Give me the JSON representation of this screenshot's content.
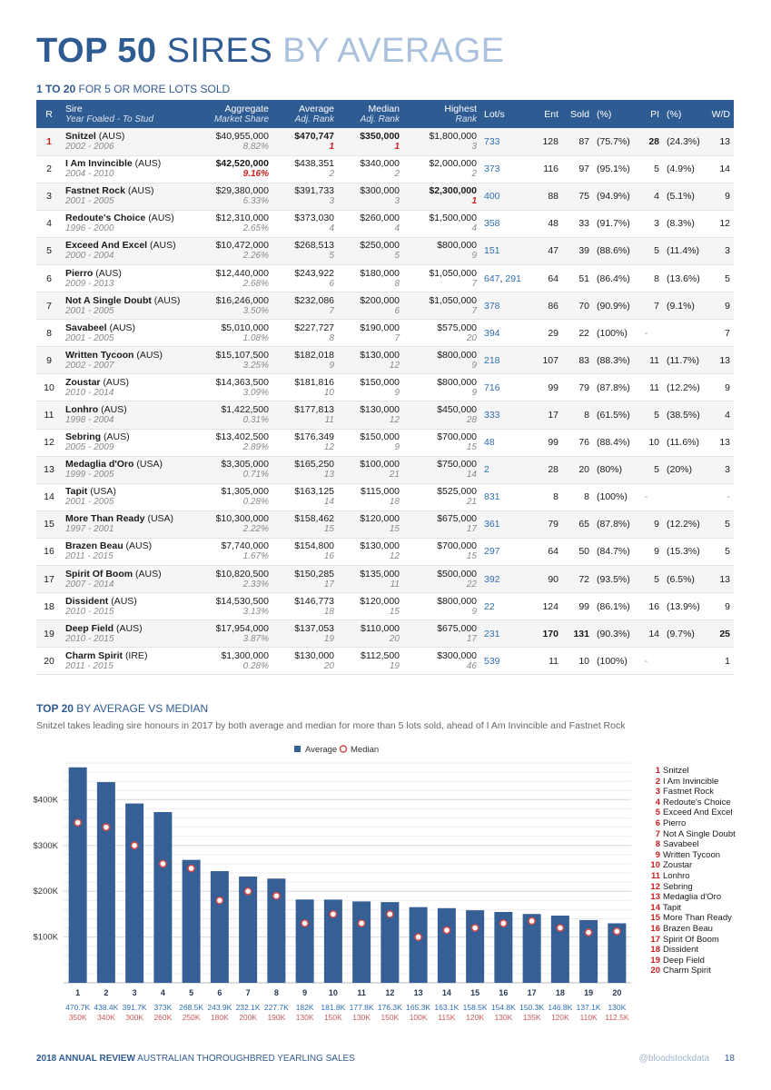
{
  "title": {
    "bold": "TOP 50",
    "mid": "SIRES",
    "light": "BY AVERAGE"
  },
  "subtitle": {
    "bold": "1 TO 20",
    "rest": "FOR 5 OR MORE LOTS SOLD"
  },
  "table": {
    "headers": {
      "r": "R",
      "sire": "Sire",
      "sire_sub": "Year Foaled - To Stud",
      "agg": "Aggregate",
      "agg_sub": "Market Share",
      "avg": "Average",
      "avg_sub": "Adj. Rank",
      "med": "Median",
      "med_sub": "Adj. Rank",
      "high": "Highest",
      "high_sub": "Rank",
      "lots": "Lot/s",
      "ent": "Ent",
      "sold": "Sold",
      "pct": "(%)",
      "pi": "PI",
      "pipct": "(%)",
      "wd": "W/D"
    },
    "rows": [
      {
        "r": "1",
        "name": "Snitzel",
        "country": "(AUS)",
        "years": "2002 - 2006",
        "agg": "$40,955,000",
        "share": "8.82%",
        "avg": "$470,747",
        "avg_rank": "1",
        "med": "$350,000",
        "med_rank": "1",
        "high": "$1,800,000",
        "high_rank": "3",
        "lots": [
          "733"
        ],
        "ent": "128",
        "sold": "87",
        "pct": "(75.7%)",
        "pi": "28",
        "pipct": "(24.3%)",
        "wd": "13"
      },
      {
        "r": "2",
        "name": "I Am Invincible",
        "country": "(AUS)",
        "years": "2004 - 2010",
        "agg": "$42,520,000",
        "share": "9.16%",
        "avg": "$438,351",
        "avg_rank": "2",
        "med": "$340,000",
        "med_rank": "2",
        "high": "$2,000,000",
        "high_rank": "2",
        "lots": [
          "373"
        ],
        "ent": "116",
        "sold": "97",
        "pct": "(95.1%)",
        "pi": "5",
        "pipct": "(4.9%)",
        "wd": "14"
      },
      {
        "r": "3",
        "name": "Fastnet Rock",
        "country": "(AUS)",
        "years": "2001 - 2005",
        "agg": "$29,380,000",
        "share": "6.33%",
        "avg": "$391,733",
        "avg_rank": "3",
        "med": "$300,000",
        "med_rank": "3",
        "high": "$2,300,000",
        "high_rank": "1",
        "lots": [
          "400"
        ],
        "ent": "88",
        "sold": "75",
        "pct": "(94.9%)",
        "pi": "4",
        "pipct": "(5.1%)",
        "wd": "9"
      },
      {
        "r": "4",
        "name": "Redoute's Choice",
        "country": "(AUS)",
        "years": "1996 - 2000",
        "agg": "$12,310,000",
        "share": "2.65%",
        "avg": "$373,030",
        "avg_rank": "4",
        "med": "$260,000",
        "med_rank": "4",
        "high": "$1,500,000",
        "high_rank": "4",
        "lots": [
          "358"
        ],
        "ent": "48",
        "sold": "33",
        "pct": "(91.7%)",
        "pi": "3",
        "pipct": "(8.3%)",
        "wd": "12"
      },
      {
        "r": "5",
        "name": "Exceed And Excel",
        "country": "(AUS)",
        "years": "2000 - 2004",
        "agg": "$10,472,000",
        "share": "2.26%",
        "avg": "$268,513",
        "avg_rank": "5",
        "med": "$250,000",
        "med_rank": "5",
        "high": "$800,000",
        "high_rank": "9",
        "lots": [
          "151"
        ],
        "ent": "47",
        "sold": "39",
        "pct": "(88.6%)",
        "pi": "5",
        "pipct": "(11.4%)",
        "wd": "3"
      },
      {
        "r": "6",
        "name": "Pierro",
        "country": "(AUS)",
        "years": "2009 - 2013",
        "agg": "$12,440,000",
        "share": "2.68%",
        "avg": "$243,922",
        "avg_rank": "6",
        "med": "$180,000",
        "med_rank": "8",
        "high": "$1,050,000",
        "high_rank": "7",
        "lots": [
          "647",
          "291"
        ],
        "ent": "64",
        "sold": "51",
        "pct": "(86.4%)",
        "pi": "8",
        "pipct": "(13.6%)",
        "wd": "5"
      },
      {
        "r": "7",
        "name": "Not A Single Doubt",
        "country": "(AUS)",
        "years": "2001 - 2005",
        "agg": "$16,246,000",
        "share": "3.50%",
        "avg": "$232,086",
        "avg_rank": "7",
        "med": "$200,000",
        "med_rank": "6",
        "high": "$1,050,000",
        "high_rank": "7",
        "lots": [
          "378"
        ],
        "ent": "86",
        "sold": "70",
        "pct": "(90.9%)",
        "pi": "7",
        "pipct": "(9.1%)",
        "wd": "9"
      },
      {
        "r": "8",
        "name": "Savabeel",
        "country": "(AUS)",
        "years": "2001 - 2005",
        "agg": "$5,010,000",
        "share": "1.08%",
        "avg": "$227,727",
        "avg_rank": "8",
        "med": "$190,000",
        "med_rank": "7",
        "high": "$575,000",
        "high_rank": "20",
        "lots": [
          "394"
        ],
        "ent": "29",
        "sold": "22",
        "pct": "(100%)",
        "pi": "-",
        "pipct": "",
        "wd": "7"
      },
      {
        "r": "9",
        "name": "Written Tycoon",
        "country": "(AUS)",
        "years": "2002 - 2007",
        "agg": "$15,107,500",
        "share": "3.25%",
        "avg": "$182,018",
        "avg_rank": "9",
        "med": "$130,000",
        "med_rank": "12",
        "high": "$800,000",
        "high_rank": "9",
        "lots": [
          "218"
        ],
        "ent": "107",
        "sold": "83",
        "pct": "(88.3%)",
        "pi": "11",
        "pipct": "(11.7%)",
        "wd": "13"
      },
      {
        "r": "10",
        "name": "Zoustar",
        "country": "(AUS)",
        "years": "2010 - 2014",
        "agg": "$14,363,500",
        "share": "3.09%",
        "avg": "$181,816",
        "avg_rank": "10",
        "med": "$150,000",
        "med_rank": "9",
        "high": "$800,000",
        "high_rank": "9",
        "lots": [
          "716"
        ],
        "ent": "99",
        "sold": "79",
        "pct": "(87.8%)",
        "pi": "11",
        "pipct": "(12.2%)",
        "wd": "9"
      },
      {
        "r": "11",
        "name": "Lonhro",
        "country": "(AUS)",
        "years": "1998 - 2004",
        "agg": "$1,422,500",
        "share": "0.31%",
        "avg": "$177,813",
        "avg_rank": "11",
        "med": "$130,000",
        "med_rank": "12",
        "high": "$450,000",
        "high_rank": "28",
        "lots": [
          "333"
        ],
        "ent": "17",
        "sold": "8",
        "pct": "(61.5%)",
        "pi": "5",
        "pipct": "(38.5%)",
        "wd": "4"
      },
      {
        "r": "12",
        "name": "Sebring",
        "country": "(AUS)",
        "years": "2005 - 2009",
        "agg": "$13,402,500",
        "share": "2.89%",
        "avg": "$176,349",
        "avg_rank": "12",
        "med": "$150,000",
        "med_rank": "9",
        "high": "$700,000",
        "high_rank": "15",
        "lots": [
          "48"
        ],
        "ent": "99",
        "sold": "76",
        "pct": "(88.4%)",
        "pi": "10",
        "pipct": "(11.6%)",
        "wd": "13"
      },
      {
        "r": "13",
        "name": "Medaglia d'Oro",
        "country": "(USA)",
        "years": "1999 - 2005",
        "agg": "$3,305,000",
        "share": "0.71%",
        "avg": "$165,250",
        "avg_rank": "13",
        "med": "$100,000",
        "med_rank": "21",
        "high": "$750,000",
        "high_rank": "14",
        "lots": [
          "2"
        ],
        "ent": "28",
        "sold": "20",
        "pct": "(80%)",
        "pi": "5",
        "pipct": "(20%)",
        "wd": "3"
      },
      {
        "r": "14",
        "name": "Tapit",
        "country": "(USA)",
        "years": "2001 - 2005",
        "agg": "$1,305,000",
        "share": "0.28%",
        "avg": "$163,125",
        "avg_rank": "14",
        "med": "$115,000",
        "med_rank": "18",
        "high": "$525,000",
        "high_rank": "21",
        "lots": [
          "831"
        ],
        "ent": "8",
        "sold": "8",
        "pct": "(100%)",
        "pi": "-",
        "pipct": "",
        "wd": "-"
      },
      {
        "r": "15",
        "name": "More Than Ready",
        "country": "(USA)",
        "years": "1997 - 2001",
        "agg": "$10,300,000",
        "share": "2.22%",
        "avg": "$158,462",
        "avg_rank": "15",
        "med": "$120,000",
        "med_rank": "15",
        "high": "$675,000",
        "high_rank": "17",
        "lots": [
          "361"
        ],
        "ent": "79",
        "sold": "65",
        "pct": "(87.8%)",
        "pi": "9",
        "pipct": "(12.2%)",
        "wd": "5"
      },
      {
        "r": "16",
        "name": "Brazen Beau",
        "country": "(AUS)",
        "years": "2011 - 2015",
        "agg": "$7,740,000",
        "share": "1.67%",
        "avg": "$154,800",
        "avg_rank": "16",
        "med": "$130,000",
        "med_rank": "12",
        "high": "$700,000",
        "high_rank": "15",
        "lots": [
          "297"
        ],
        "ent": "64",
        "sold": "50",
        "pct": "(84.7%)",
        "pi": "9",
        "pipct": "(15.3%)",
        "wd": "5"
      },
      {
        "r": "17",
        "name": "Spirit Of Boom",
        "country": "(AUS)",
        "years": "2007 - 2014",
        "agg": "$10,820,500",
        "share": "2.33%",
        "avg": "$150,285",
        "avg_rank": "17",
        "med": "$135,000",
        "med_rank": "11",
        "high": "$500,000",
        "high_rank": "22",
        "lots": [
          "392"
        ],
        "ent": "90",
        "sold": "72",
        "pct": "(93.5%)",
        "pi": "5",
        "pipct": "(6.5%)",
        "wd": "13"
      },
      {
        "r": "18",
        "name": "Dissident",
        "country": "(AUS)",
        "years": "2010 - 2015",
        "agg": "$14,530,500",
        "share": "3.13%",
        "avg": "$146,773",
        "avg_rank": "18",
        "med": "$120,000",
        "med_rank": "15",
        "high": "$800,000",
        "high_rank": "9",
        "lots": [
          "22"
        ],
        "ent": "124",
        "sold": "99",
        "pct": "(86.1%)",
        "pi": "16",
        "pipct": "(13.9%)",
        "wd": "9"
      },
      {
        "r": "19",
        "name": "Deep Field",
        "country": "(AUS)",
        "years": "2010 - 2015",
        "agg": "$17,954,000",
        "share": "3.87%",
        "avg": "$137,053",
        "avg_rank": "19",
        "med": "$110,000",
        "med_rank": "20",
        "high": "$675,000",
        "high_rank": "17",
        "lots": [
          "231"
        ],
        "ent": "170",
        "sold": "131",
        "pct": "(90.3%)",
        "pi": "14",
        "pipct": "(9.7%)",
        "wd": "25"
      },
      {
        "r": "20",
        "name": "Charm Spirit",
        "country": "(IRE)",
        "years": "2011 - 2015",
        "agg": "$1,300,000",
        "share": "0.28%",
        "avg": "$130,000",
        "avg_rank": "20",
        "med": "$112,500",
        "med_rank": "19",
        "high": "$300,000",
        "high_rank": "46",
        "lots": [
          "539"
        ],
        "ent": "11",
        "sold": "10",
        "pct": "(100%)",
        "pi": "-",
        "pipct": "",
        "wd": "1"
      }
    ]
  },
  "section2": {
    "bold": "TOP 20",
    "rest": "BY AVERAGE VS MEDIAN",
    "description": "Snitzel takes leading sire honours in 2017 by both average and median for more than 5 lots sold, ahead of I Am Invincible and Fastnet Rock"
  },
  "chart_data": {
    "type": "bar",
    "categories": [
      "1",
      "2",
      "3",
      "4",
      "5",
      "6",
      "7",
      "8",
      "9",
      "10",
      "11",
      "12",
      "13",
      "14",
      "15",
      "16",
      "17",
      "18",
      "19",
      "20"
    ],
    "series": [
      {
        "name": "Average",
        "values": [
          470.7,
          438.4,
          391.7,
          373,
          268.5,
          243.9,
          232.1,
          227.7,
          182,
          181.8,
          177.8,
          176.3,
          165.3,
          163.1,
          158.5,
          154.8,
          150.3,
          146.8,
          137.1,
          130
        ],
        "color": "#355f95"
      },
      {
        "name": "Median",
        "values": [
          350,
          340,
          300,
          260,
          250,
          180,
          200,
          190,
          130,
          150,
          130,
          150,
          100,
          115,
          120,
          130,
          135,
          120,
          110,
          112.5
        ],
        "color": "#d24b4b"
      }
    ],
    "avg_labels": [
      "470.7K",
      "438.4K",
      "391.7K",
      "373K",
      "268.5K",
      "243.9K",
      "232.1K",
      "227.7K",
      "182K",
      "181.8K",
      "177.8K",
      "176.3K",
      "165.3K",
      "163.1K",
      "158.5K",
      "154.8K",
      "150.3K",
      "146.8K",
      "137.1K",
      "130K"
    ],
    "med_labels": [
      "350K",
      "340K",
      "300K",
      "260K",
      "250K",
      "180K",
      "200K",
      "190K",
      "130K",
      "150K",
      "130K",
      "150K",
      "100K",
      "115K",
      "120K",
      "130K",
      "135K",
      "120K",
      "110K",
      "112.5K"
    ],
    "y_ticks": [
      {
        "value": 100,
        "label": "$100K"
      },
      {
        "value": 200,
        "label": "$200K"
      },
      {
        "value": 300,
        "label": "$300K"
      },
      {
        "value": 400,
        "label": "$400K"
      }
    ],
    "ylim": [
      0,
      500
    ],
    "grid": true,
    "legend": "top-center",
    "sire_legend": [
      "Snitzel",
      "I Am Invincible",
      "Fastnet Rock",
      "Redoute's Choice",
      "Exceed And Excel",
      "Pierro",
      "Not A Single Doubt",
      "Savabeel",
      "Written Tycoon",
      "Zoustar",
      "Lonhro",
      "Sebring",
      "Medaglia d'Oro",
      "Tapit",
      "More Than Ready",
      "Brazen Beau",
      "Spirit Of Boom",
      "Dissident",
      "Deep Field",
      "Charm Spirit"
    ]
  },
  "footer": {
    "bold": "2018 ANNUAL REVIEW",
    "rest": "AUSTRALIAN THOROUGHBRED YEARLING SALES",
    "handle": "@bloodstockdata",
    "page": "18"
  },
  "colors": {
    "accent": "#2f5b93",
    "light_accent": "#a9c1dc",
    "highlight": "#cc1f1f",
    "link": "#2f6fb0"
  }
}
